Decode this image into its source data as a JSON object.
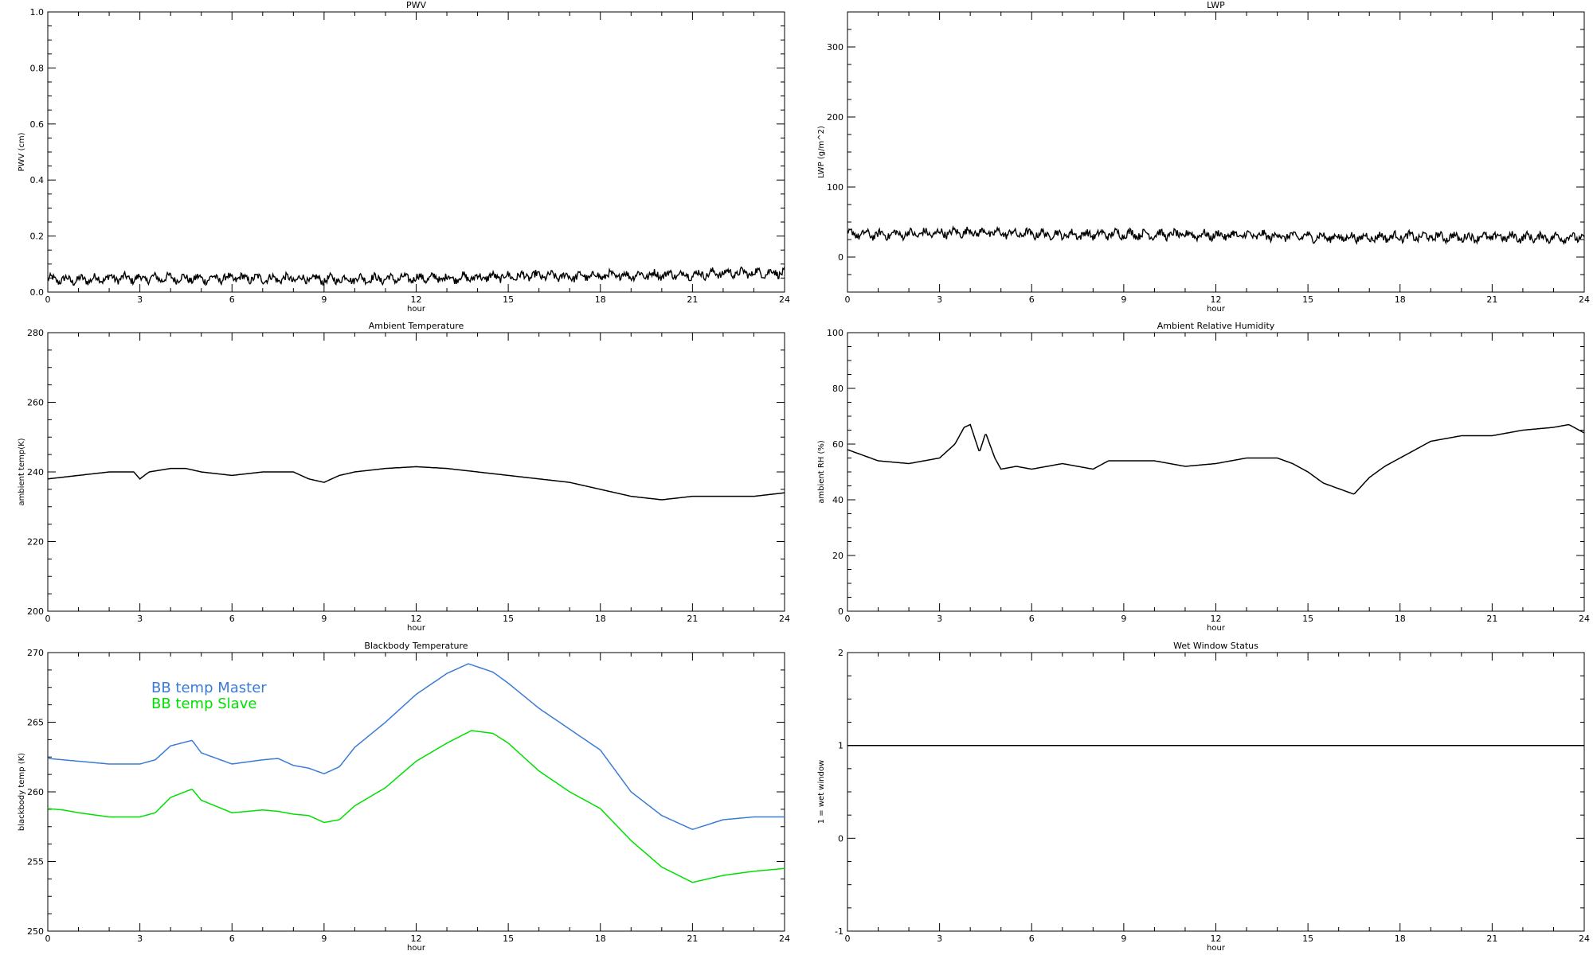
{
  "chart_data": [
    {
      "type": "line",
      "title": "PWV",
      "xlabel": "hour",
      "ylabel": "PWV (cm)",
      "xlim": [
        0,
        24
      ],
      "ylim": [
        0.0,
        1.0
      ],
      "xticks": [
        "0",
        "3",
        "6",
        "9",
        "12",
        "15",
        "18",
        "21",
        "24"
      ],
      "yticks": [
        "0.0",
        "0.2",
        "0.4",
        "0.6",
        "0.8",
        "1.0"
      ],
      "noisy": true,
      "series": [
        {
          "color": "#000000",
          "x": [
            0,
            1,
            2,
            3,
            4,
            5,
            6,
            7,
            8,
            9,
            10,
            11,
            12,
            13,
            14,
            15,
            16,
            17,
            18,
            19,
            20,
            21,
            22,
            23,
            24
          ],
          "y": [
            0.045,
            0.043,
            0.05,
            0.048,
            0.05,
            0.047,
            0.05,
            0.048,
            0.047,
            0.045,
            0.048,
            0.047,
            0.05,
            0.05,
            0.052,
            0.055,
            0.058,
            0.055,
            0.058,
            0.06,
            0.062,
            0.062,
            0.068,
            0.068,
            0.07
          ]
        }
      ]
    },
    {
      "type": "line",
      "title": "LWP",
      "xlabel": "hour",
      "ylabel": "LWP (g/m^2)",
      "xlim": [
        0,
        24
      ],
      "ylim": [
        -50,
        350
      ],
      "xticks": [
        "0",
        "3",
        "6",
        "9",
        "12",
        "15",
        "18",
        "21",
        "24"
      ],
      "yticks": [
        "0",
        "100",
        "200",
        "300"
      ],
      "noisy": true,
      "series": [
        {
          "color": "#000000",
          "x": [
            0,
            1,
            2,
            3,
            4,
            5,
            6,
            7,
            8,
            9,
            10,
            11,
            12,
            13,
            14,
            15,
            16,
            17,
            18,
            19,
            20,
            21,
            22,
            23,
            24
          ],
          "y": [
            33,
            32,
            33,
            34,
            36,
            34,
            33,
            32,
            32,
            33,
            32,
            32,
            31,
            31,
            30,
            29,
            28,
            28,
            29,
            29,
            28,
            29,
            28,
            28,
            28
          ]
        }
      ]
    },
    {
      "type": "line",
      "title": "Ambient Temperature",
      "xlabel": "hour",
      "ylabel": "ambient temp(K)",
      "xlim": [
        0,
        24
      ],
      "ylim": [
        200,
        280
      ],
      "xticks": [
        "0",
        "3",
        "6",
        "9",
        "12",
        "15",
        "18",
        "21",
        "24"
      ],
      "yticks": [
        "200",
        "220",
        "240",
        "260",
        "280"
      ],
      "noisy": false,
      "series": [
        {
          "color": "#000000",
          "x": [
            0,
            1,
            2,
            2.8,
            3,
            3.3,
            4,
            4.5,
            5,
            6,
            7,
            8,
            8.5,
            9,
            9.5,
            10,
            11,
            12,
            13,
            14,
            15,
            16,
            17,
            18,
            19,
            20,
            21,
            22,
            23,
            24
          ],
          "y": [
            238,
            239,
            240,
            240,
            238,
            240,
            241,
            241,
            240,
            239,
            240,
            240,
            238,
            237,
            239,
            240,
            241,
            241.5,
            241,
            240,
            239,
            238,
            237,
            235,
            233,
            232,
            233,
            233,
            233,
            234
          ]
        }
      ]
    },
    {
      "type": "line",
      "title": "Ambient Relative Humidity",
      "xlabel": "hour",
      "ylabel": "ambient RH (%)",
      "xlim": [
        0,
        24
      ],
      "ylim": [
        0,
        100
      ],
      "xticks": [
        "0",
        "3",
        "6",
        "9",
        "12",
        "15",
        "18",
        "21",
        "24"
      ],
      "yticks": [
        "0",
        "20",
        "40",
        "60",
        "80",
        "100"
      ],
      "noisy": false,
      "series": [
        {
          "color": "#000000",
          "x": [
            0,
            0.5,
            1,
            2,
            3,
            3.5,
            3.8,
            4.0,
            4.3,
            4.5,
            4.8,
            5,
            5.5,
            6,
            7,
            7.5,
            8,
            8.5,
            9,
            10,
            11,
            12,
            13,
            14,
            14.5,
            15,
            15.5,
            16,
            16.5,
            17,
            17.5,
            18,
            19,
            20,
            21,
            22,
            23,
            23.5,
            24
          ],
          "y": [
            58,
            56,
            54,
            53,
            55,
            60,
            66,
            67,
            57,
            64,
            55,
            51,
            52,
            51,
            53,
            52,
            51,
            54,
            54,
            54,
            52,
            53,
            55,
            55,
            53,
            50,
            46,
            44,
            42,
            48,
            52,
            55,
            61,
            63,
            63,
            65,
            66,
            67,
            64
          ]
        }
      ]
    },
    {
      "type": "line",
      "title": "Blackbody Temperature",
      "xlabel": "hour",
      "ylabel": "blackbody temp (K)",
      "xlim": [
        0,
        24
      ],
      "ylim": [
        250,
        270
      ],
      "xticks": [
        "0",
        "3",
        "6",
        "9",
        "12",
        "15",
        "18",
        "21",
        "24"
      ],
      "yticks": [
        "250",
        "255",
        "260",
        "265",
        "270"
      ],
      "noisy": false,
      "legend": [
        "BB temp Master",
        "BB temp Slave"
      ],
      "series": [
        {
          "name": "BB temp Master",
          "color": "#3b7bd6",
          "x": [
            0,
            0.5,
            1,
            2,
            3,
            3.5,
            4,
            4.7,
            5,
            6,
            7,
            7.5,
            8,
            8.5,
            9,
            9.5,
            10,
            11,
            12,
            13,
            13.7,
            14.5,
            15,
            16,
            17,
            18,
            19,
            20,
            21,
            22,
            23,
            24
          ],
          "y": [
            262.4,
            262.3,
            262.2,
            262.0,
            262.0,
            262.3,
            263.3,
            263.7,
            262.8,
            262.0,
            262.3,
            262.4,
            261.9,
            261.7,
            261.3,
            261.8,
            263.2,
            265.0,
            267.0,
            268.5,
            269.2,
            268.6,
            267.8,
            266.0,
            264.5,
            263.0,
            260.0,
            258.3,
            257.3,
            258.0,
            258.2,
            258.2
          ]
        },
        {
          "name": "BB temp Slave",
          "color": "#00e000",
          "x": [
            0,
            0.5,
            1,
            2,
            3,
            3.5,
            4,
            4.7,
            5,
            6,
            7,
            7.5,
            8,
            8.5,
            9,
            9.5,
            10,
            11,
            12,
            13,
            13.8,
            14.5,
            15,
            16,
            17,
            18,
            19,
            20,
            21,
            22,
            23,
            24
          ],
          "y": [
            258.8,
            258.7,
            258.5,
            258.2,
            258.2,
            258.5,
            259.6,
            260.2,
            259.4,
            258.5,
            258.7,
            258.6,
            258.4,
            258.3,
            257.8,
            258.0,
            259.0,
            260.3,
            262.2,
            263.5,
            264.4,
            264.2,
            263.5,
            261.5,
            260.0,
            258.8,
            256.5,
            254.6,
            253.5,
            254.0,
            254.3,
            254.5
          ]
        }
      ]
    },
    {
      "type": "line",
      "title": "Wet Window Status",
      "xlabel": "hour",
      "ylabel": "1 = wet window",
      "xlim": [
        0,
        24
      ],
      "ylim": [
        -1,
        2
      ],
      "xticks": [
        "0",
        "3",
        "6",
        "9",
        "12",
        "15",
        "18",
        "21",
        "24"
      ],
      "yticks": [
        "-1",
        "0",
        "1",
        "2"
      ],
      "noisy": false,
      "series": [
        {
          "color": "#000000",
          "x": [
            0,
            24
          ],
          "y": [
            1,
            1
          ]
        }
      ]
    }
  ]
}
